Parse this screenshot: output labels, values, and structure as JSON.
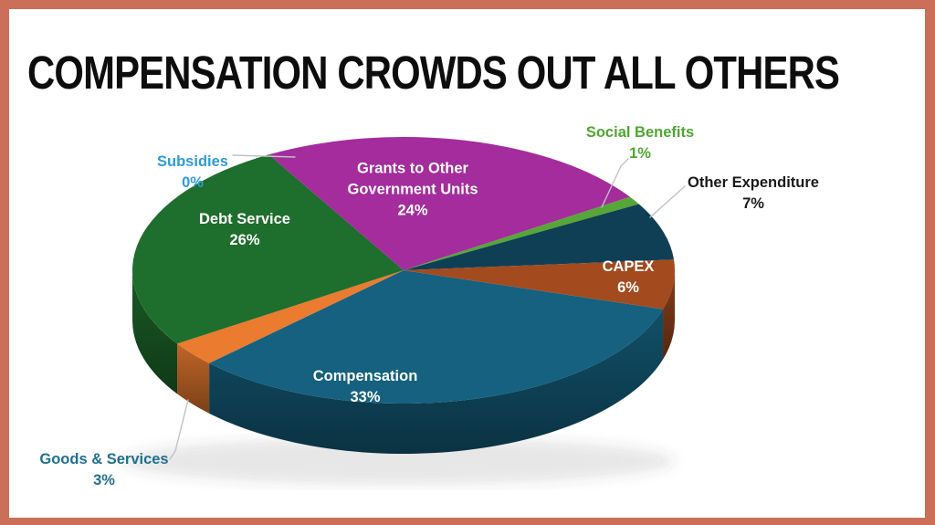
{
  "title": "COMPENSATION CROWDS OUT ALL OTHERS",
  "frame_color": "#CC6F59",
  "background_color": "#FFFFFF",
  "chart_data": {
    "type": "pie",
    "style": "3d",
    "title": "COMPENSATION CROWDS OUT ALL OTHERS",
    "unit": "%",
    "total": 100,
    "legend": "none",
    "labels_on_chart": true,
    "slices": [
      {
        "label": "Compensation",
        "value": 33,
        "pct": "33%",
        "color": "#15617F",
        "label_color": "#FFFFFF"
      },
      {
        "label": "Goods & Services",
        "value": 3,
        "pct": "3%",
        "color": "#EA7B2F",
        "label_color": "#20708F"
      },
      {
        "label": "Debt Service",
        "value": 26,
        "pct": "26%",
        "color": "#1E6E2D",
        "label_color": "#FFFFFF"
      },
      {
        "label": "Subsidies",
        "value": 0,
        "pct": "0%",
        "color": "#2E9BD6",
        "label_color": "#2E9BD6"
      },
      {
        "label": "Grants to Other Government Units",
        "value": 24,
        "pct": "24%",
        "color": "#A42C9C",
        "label_color": "#FFFFFF"
      },
      {
        "label": "Social Benefits",
        "value": 1,
        "pct": "1%",
        "color": "#56A638",
        "label_color": "#4EA72E"
      },
      {
        "label": "Other Expenditure",
        "value": 7,
        "pct": "7%",
        "color": "#0F3F55",
        "label_color": "#1A1A1A"
      },
      {
        "label": "CAPEX",
        "value": 6,
        "pct": "6%",
        "color": "#A34A1F",
        "label_color": "#FFFFFF"
      }
    ]
  }
}
